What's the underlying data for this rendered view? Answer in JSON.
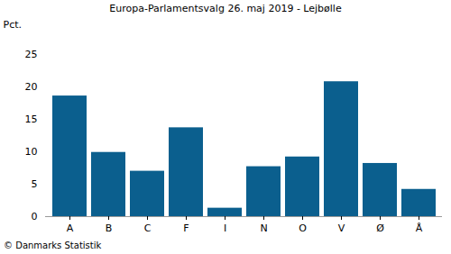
{
  "chart_data": {
    "type": "bar",
    "title": "Europa-Parlamentsvalg 26. maj 2019 - Lejbølle",
    "y_label": "Pct.",
    "caption": "© Danmarks Statistik",
    "categories": [
      "A",
      "B",
      "C",
      "F",
      "I",
      "N",
      "O",
      "V",
      "Ø",
      "Å"
    ],
    "values": [
      18.6,
      9.9,
      7.0,
      13.7,
      1.3,
      7.7,
      9.2,
      20.8,
      8.2,
      4.2
    ],
    "color": "#0b5f8e",
    "ylim": [
      0,
      25
    ],
    "yticks": [
      0,
      5,
      10,
      15,
      20,
      25
    ],
    "grid": false
  }
}
